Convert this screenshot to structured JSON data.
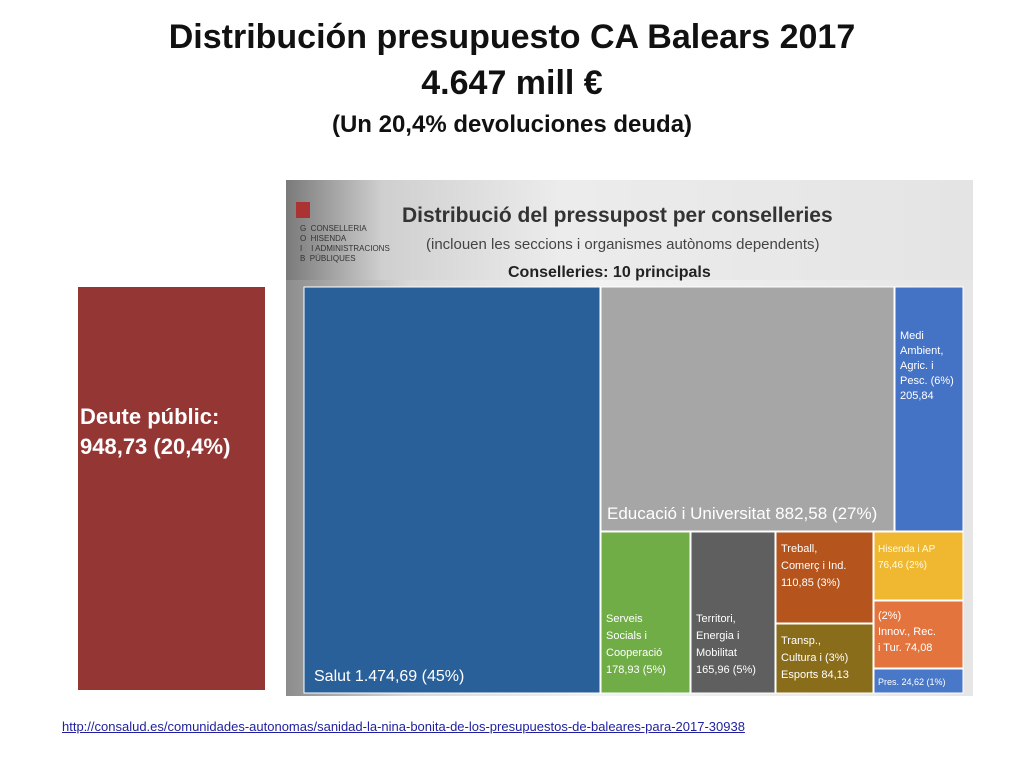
{
  "title": {
    "line1": "Distribución presupuesto CA Balears 2017",
    "line2": "4.647 mill €",
    "line3": "(Un 20,4% devoluciones deuda)"
  },
  "debt": {
    "label_line1": "Deute públic:",
    "label_line2": "948,73 (20,4%)",
    "value": 948.73,
    "percent": 20.4,
    "color": "#943634"
  },
  "inset": {
    "logo_text": "G  CONSELLERIA\nO  HISENDA\nI    I ADMINISTRACIONS\nB  PÚBLIQUES",
    "title": "Distribució del pressupost per conselleries",
    "subtitle": "(inclouen les seccions i organismes autònoms dependents)",
    "label": "Conselleries: 10 principals"
  },
  "source_url": "http://consalud.es/comunidades-autonomas/sanidad-la-nina-bonita-de-los-presupuestos-de-baleares-para-2017-30938",
  "chart_data": {
    "type": "treemap",
    "title": "Distribució del pressupost per conselleries",
    "subtitle": "(inclouen les seccions i organismes autònoms dependents)",
    "items": [
      {
        "label": "Salut",
        "value": 1474.69,
        "percent": "(45%)",
        "display": "Salut 1.474,69",
        "color": "#2a6099"
      },
      {
        "label": "Educació i Universitat",
        "value": 882.58,
        "percent": "(27%)",
        "display": "Educació i Universitat 882,58",
        "color": "#a6a6a6"
      },
      {
        "label": "Medi Ambient, Agric. i Pesc.",
        "value": 205.84,
        "percent": "(6%)",
        "display": "205,84",
        "color": "#4472c4"
      },
      {
        "label": "Serveis Socials i Cooperació",
        "value": 178.93,
        "percent": "(5%)",
        "display": "178,93",
        "color": "#70ad47"
      },
      {
        "label": "Territori, Energia i Mobilitat",
        "value": 165.96,
        "percent": "(5%)",
        "display": "165,96",
        "color": "#5f5f5f"
      },
      {
        "label": "Treball, Comerç i Ind.",
        "value": 110.85,
        "percent": "(3%)",
        "display": "110,85",
        "color": "#b5541c"
      },
      {
        "label": "Transp., Cultura i Esports",
        "value": 84.13,
        "percent": "(3%)",
        "display": "Esports 84,13",
        "color": "#8a6d1b"
      },
      {
        "label": "Hisenda i AP",
        "value": 76.46,
        "percent": "(2%)",
        "display": "76,46",
        "color": "#f0b830"
      },
      {
        "label": "Innov., Rec. i Tur.",
        "value": 74.08,
        "percent": "(2%)",
        "display": "i Tur. 74,08",
        "color": "#e4743d"
      },
      {
        "label": "Pres.",
        "value": 24.62,
        "percent": "(1%)",
        "display": "Pres. 24,62",
        "color": "#4a78c8"
      }
    ]
  }
}
